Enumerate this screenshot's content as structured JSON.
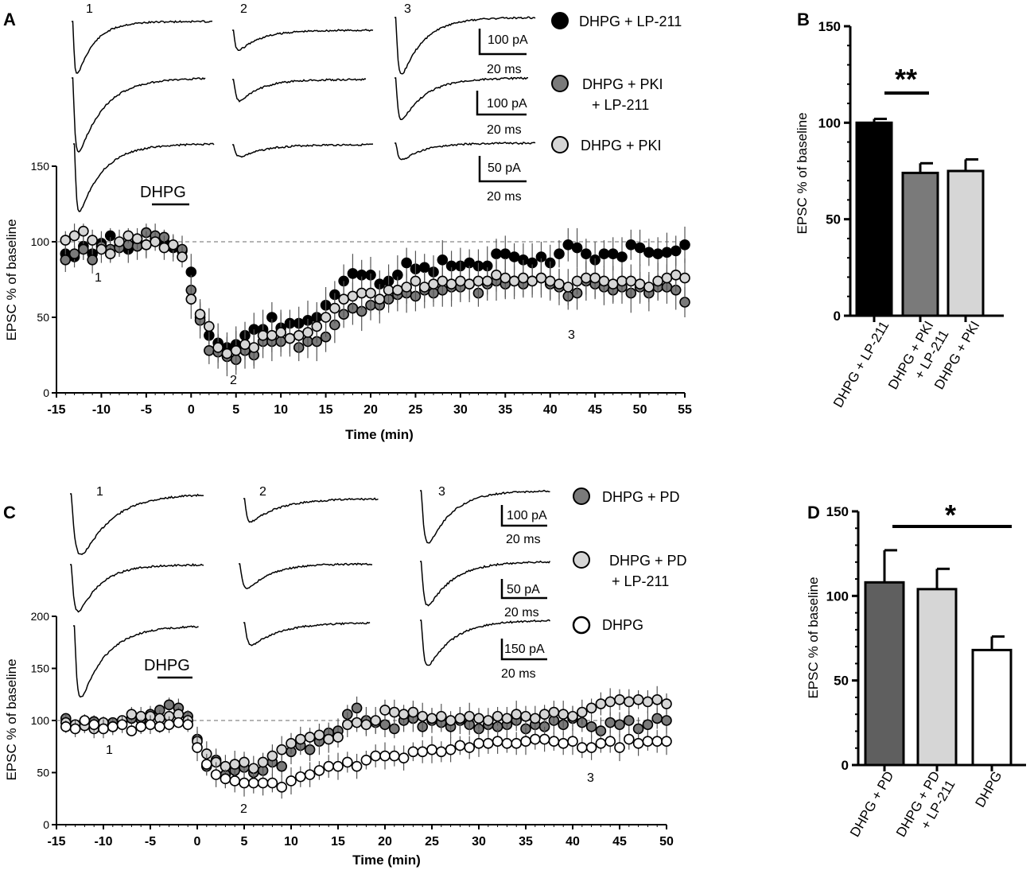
{
  "figure": {
    "panels": {
      "A": "A",
      "B": "B",
      "C": "C",
      "D": "D"
    }
  },
  "chart_data": [
    {
      "id": "A",
      "type": "scatter",
      "title": "",
      "xlabel": "Time (min)",
      "ylabel": "EPSC % of baseline",
      "xlim": [
        -15,
        55
      ],
      "ylim": [
        0,
        150
      ],
      "xticks": [
        "-15",
        "-10",
        "-5",
        "0",
        "5",
        "10",
        "15",
        "20",
        "25",
        "30",
        "35",
        "40",
        "45",
        "50",
        "55"
      ],
      "yticks": [
        "0",
        "50",
        "100",
        "150"
      ],
      "baseline": 100,
      "drug_bar": {
        "label": "DHPG",
        "start": -4,
        "end": -1
      },
      "time_markers": [
        {
          "label": "1",
          "x": -10.5,
          "y": 77
        },
        {
          "label": "2",
          "x": 4.8,
          "y": 9
        },
        {
          "label": "3",
          "x": 42.5,
          "y": 38
        }
      ],
      "trace_labels": [
        "1",
        "2",
        "3"
      ],
      "scale_bars": [
        {
          "amp": "100 pA",
          "time": "20 ms"
        },
        {
          "amp": "100 pA",
          "time": "20 ms"
        },
        {
          "amp": "50 pA",
          "time": "20 ms"
        }
      ],
      "legend": [
        {
          "label": "DHPG + LP-211",
          "fill": "#000000"
        },
        {
          "label": "DHPG + PKI",
          "label2": "+ LP-211",
          "fill": "#7a7a7a"
        },
        {
          "label": "DHPG + PKI",
          "fill": "#d6d6d6"
        }
      ],
      "series": [
        {
          "name": "DHPG + LP-211",
          "fill": "#000000",
          "x": [
            -14,
            -13,
            -12,
            -11,
            -10,
            -9,
            -8,
            -7,
            -6,
            -5,
            -4,
            -3,
            -2,
            -1,
            0,
            1,
            2,
            3,
            4,
            5,
            6,
            7,
            8,
            9,
            10,
            11,
            12,
            13,
            14,
            15,
            16,
            17,
            18,
            19,
            20,
            21,
            22,
            23,
            24,
            25,
            26,
            27,
            28,
            29,
            30,
            31,
            32,
            33,
            34,
            35,
            36,
            37,
            38,
            39,
            40,
            41,
            42,
            43,
            44,
            45,
            46,
            47,
            48,
            49,
            50,
            51,
            52,
            53,
            54,
            55
          ],
          "y": [
            92,
            90,
            97,
            92,
            99,
            104,
            97,
            95,
            100,
            98,
            102,
            100,
            96,
            94,
            80,
            50,
            38,
            33,
            30,
            32,
            38,
            42,
            42,
            50,
            43,
            46,
            46,
            48,
            50,
            58,
            65,
            74,
            79,
            78,
            78,
            72,
            74,
            78,
            86,
            82,
            83,
            80,
            88,
            84,
            84,
            86,
            84,
            84,
            92,
            92,
            90,
            88,
            86,
            90,
            86,
            92,
            98,
            96,
            92,
            88,
            92,
            92,
            90,
            98,
            96,
            93,
            92,
            93,
            94,
            98
          ]
        },
        {
          "name": "DHPG + PKI + LP-211",
          "fill": "#7a7a7a",
          "x": [
            -14,
            -13,
            -12,
            -11,
            -10,
            -9,
            -8,
            -7,
            -6,
            -5,
            -4,
            -3,
            -2,
            -1,
            0,
            1,
            2,
            3,
            4,
            5,
            6,
            7,
            8,
            9,
            10,
            11,
            12,
            13,
            14,
            15,
            16,
            17,
            18,
            19,
            20,
            21,
            22,
            23,
            24,
            25,
            26,
            27,
            28,
            29,
            30,
            31,
            32,
            33,
            34,
            35,
            36,
            37,
            38,
            39,
            40,
            41,
            42,
            43,
            44,
            45,
            46,
            47,
            48,
            49,
            50,
            51,
            52,
            53,
            54,
            55
          ],
          "y": [
            88,
            92,
            95,
            88,
            97,
            95,
            96,
            98,
            97,
            106,
            104,
            103,
            97,
            95,
            68,
            48,
            28,
            27,
            24,
            22,
            28,
            25,
            34,
            34,
            34,
            36,
            30,
            34,
            34,
            37,
            45,
            52,
            56,
            54,
            58,
            58,
            62,
            65,
            66,
            64,
            68,
            66,
            68,
            70,
            70,
            72,
            66,
            72,
            74,
            72,
            74,
            72,
            74,
            76,
            72,
            70,
            64,
            66,
            74,
            72,
            70,
            68,
            70,
            66,
            70,
            66,
            70,
            70,
            68,
            60
          ]
        },
        {
          "name": "DHPG + PKI",
          "fill": "#d6d6d6",
          "x": [
            -14,
            -13,
            -12,
            -11,
            -10,
            -9,
            -8,
            -7,
            -6,
            -5,
            -4,
            -3,
            -2,
            -1,
            0,
            1,
            2,
            3,
            4,
            5,
            6,
            7,
            8,
            9,
            10,
            11,
            12,
            13,
            14,
            15,
            16,
            17,
            18,
            19,
            20,
            21,
            22,
            23,
            24,
            25,
            26,
            27,
            28,
            29,
            30,
            31,
            32,
            33,
            34,
            35,
            36,
            37,
            38,
            39,
            40,
            41,
            42,
            43,
            44,
            45,
            46,
            47,
            48,
            49,
            50,
            51,
            52,
            53,
            54,
            55
          ],
          "y": [
            101,
            104,
            107,
            101,
            95,
            92,
            100,
            104,
            102,
            98,
            100,
            96,
            98,
            90,
            62,
            52,
            44,
            30,
            26,
            28,
            32,
            30,
            38,
            38,
            40,
            36,
            38,
            40,
            44,
            50,
            56,
            62,
            64,
            66,
            66,
            62,
            68,
            68,
            70,
            74,
            70,
            72,
            74,
            72,
            74,
            72,
            74,
            74,
            78,
            76,
            74,
            76,
            74,
            76,
            74,
            72,
            70,
            74,
            76,
            76,
            74,
            72,
            74,
            74,
            72,
            70,
            74,
            76,
            78,
            76
          ]
        }
      ]
    },
    {
      "id": "B",
      "type": "bar",
      "title": "",
      "xlabel": "",
      "ylabel": "EPSC % of baseline",
      "ylim": [
        0,
        150
      ],
      "yticks": [
        "0",
        "50",
        "100",
        "150"
      ],
      "categories": [
        "DHPG + LP-211",
        "DHPG + PKI",
        "DHPG + PKI"
      ],
      "category_lines2": [
        "",
        "+ LP-211",
        ""
      ],
      "values": [
        100,
        74,
        75
      ],
      "errors": [
        2,
        5,
        6
      ],
      "colors": [
        "#000000",
        "#7a7a7a",
        "#d6d6d6"
      ],
      "significance": {
        "label": "**",
        "from": 0,
        "to": 1
      }
    },
    {
      "id": "C",
      "type": "scatter",
      "title": "",
      "xlabel": "Time (min)",
      "ylabel": "EPSC % of baseline",
      "xlim": [
        -15,
        50
      ],
      "ylim": [
        0,
        200
      ],
      "xticks": [
        "-15",
        "-10",
        "-5",
        "0",
        "5",
        "10",
        "15",
        "20",
        "25",
        "30",
        "35",
        "40",
        "45",
        "50"
      ],
      "yticks": [
        "0",
        "50",
        "100",
        "150",
        "200"
      ],
      "baseline": 100,
      "drug_bar": {
        "label": "DHPG",
        "start": -4.5,
        "end": -1
      },
      "time_markers": [
        {
          "label": "1",
          "x": -9.5,
          "y": 78
        },
        {
          "label": "2",
          "x": 4.8,
          "y": 16
        },
        {
          "label": "3",
          "x": 41.5,
          "y": 32
        }
      ],
      "trace_labels": [
        "1",
        "2",
        "3"
      ],
      "scale_bars": [
        {
          "amp": "100 pA",
          "time": "20 ms"
        },
        {
          "amp": "50 pA",
          "time": "20 ms"
        },
        {
          "amp": "150 pA",
          "time": "20 ms"
        }
      ],
      "legend": [
        {
          "label": "DHPG + PD",
          "fill": "#7a7a7a"
        },
        {
          "label": "DHPG + PD",
          "label2": "+ LP-211",
          "fill": "#d6d6d6"
        },
        {
          "label": "DHPG",
          "fill": "#ffffff"
        }
      ],
      "series": [
        {
          "name": "DHPG + PD",
          "fill": "#7a7a7a",
          "x": [
            -14,
            -13,
            -12,
            -11,
            -10,
            -9,
            -8,
            -7,
            -6,
            -5,
            -4,
            -3,
            -2,
            -1,
            0,
            1,
            2,
            3,
            4,
            5,
            6,
            7,
            8,
            9,
            10,
            11,
            12,
            13,
            14,
            15,
            16,
            17,
            18,
            19,
            20,
            21,
            22,
            23,
            24,
            25,
            26,
            27,
            28,
            29,
            30,
            31,
            32,
            33,
            34,
            35,
            36,
            37,
            38,
            39,
            40,
            41,
            42,
            43,
            44,
            45,
            46,
            47,
            48,
            49,
            50
          ],
          "y": [
            102,
            94,
            97,
            99,
            95,
            98,
            98,
            102,
            101,
            106,
            110,
            115,
            112,
            104,
            82,
            56,
            62,
            48,
            52,
            55,
            50,
            52,
            60,
            56,
            70,
            76,
            72,
            80,
            88,
            90,
            106,
            112,
            100,
            98,
            96,
            92,
            100,
            102,
            94,
            100,
            98,
            94,
            100,
            96,
            92,
            96,
            94,
            96,
            100,
            92,
            96,
            94,
            100,
            96,
            102,
            98,
            94,
            90,
            98,
            96,
            100,
            92,
            96,
            102,
            100
          ]
        },
        {
          "name": "DHPG + PD + LP-211",
          "fill": "#d6d6d6",
          "x": [
            -14,
            -13,
            -12,
            -11,
            -10,
            -9,
            -8,
            -7,
            -6,
            -5,
            -4,
            -3,
            -2,
            -1,
            0,
            1,
            2,
            3,
            4,
            5,
            6,
            7,
            8,
            9,
            10,
            11,
            12,
            13,
            14,
            15,
            16,
            17,
            18,
            19,
            20,
            21,
            22,
            23,
            24,
            25,
            26,
            27,
            28,
            29,
            30,
            31,
            32,
            33,
            34,
            35,
            36,
            37,
            38,
            39,
            40,
            41,
            42,
            43,
            44,
            45,
            46,
            47,
            48,
            49,
            50
          ],
          "y": [
            98,
            96,
            95,
            92,
            98,
            94,
            100,
            106,
            104,
            104,
            102,
            104,
            106,
            100,
            80,
            68,
            60,
            56,
            58,
            60,
            54,
            60,
            66,
            72,
            78,
            82,
            84,
            86,
            82,
            84,
            96,
            98,
            96,
            100,
            110,
            108,
            106,
            108,
            104,
            102,
            104,
            100,
            102,
            104,
            102,
            100,
            104,
            102,
            106,
            104,
            102,
            106,
            108,
            106,
            104,
            108,
            112,
            116,
            118,
            120,
            118,
            120,
            118,
            120,
            116
          ]
        },
        {
          "name": "DHPG",
          "fill": "#ffffff",
          "x": [
            -14,
            -13,
            -12,
            -11,
            -10,
            -9,
            -8,
            -7,
            -6,
            -5,
            -4,
            -3,
            -2,
            -1,
            0,
            1,
            2,
            3,
            4,
            5,
            6,
            7,
            8,
            9,
            10,
            11,
            12,
            13,
            14,
            15,
            16,
            17,
            18,
            19,
            20,
            21,
            22,
            23,
            24,
            25,
            26,
            27,
            28,
            29,
            30,
            31,
            32,
            33,
            34,
            35,
            36,
            37,
            38,
            39,
            40,
            41,
            42,
            43,
            44,
            45,
            46,
            47,
            48,
            49,
            50
          ],
          "y": [
            94,
            92,
            100,
            96,
            92,
            94,
            96,
            90,
            94,
            96,
            94,
            96,
            98,
            96,
            74,
            58,
            48,
            44,
            42,
            40,
            40,
            40,
            40,
            36,
            42,
            46,
            48,
            52,
            56,
            56,
            60,
            56,
            62,
            66,
            66,
            66,
            64,
            70,
            70,
            72,
            70,
            72,
            76,
            74,
            78,
            78,
            80,
            78,
            78,
            80,
            82,
            82,
            80,
            78,
            80,
            74,
            74,
            78,
            80,
            74,
            82,
            78,
            80,
            80,
            80
          ]
        }
      ]
    },
    {
      "id": "D",
      "type": "bar",
      "title": "",
      "xlabel": "",
      "ylabel": "EPSC % of baseline",
      "ylim": [
        0,
        150
      ],
      "yticks": [
        "0",
        "50",
        "100",
        "150"
      ],
      "categories": [
        "DHPG + PD",
        "DHPG + PD",
        "DHPG"
      ],
      "category_lines2": [
        "",
        "+ LP-211",
        ""
      ],
      "values": [
        108,
        104,
        68
      ],
      "errors": [
        19,
        12,
        8
      ],
      "colors": [
        "#5f5f5f",
        "#d6d6d6",
        "#ffffff"
      ],
      "significance": {
        "label": "*",
        "from": 0,
        "to": 2
      }
    }
  ]
}
